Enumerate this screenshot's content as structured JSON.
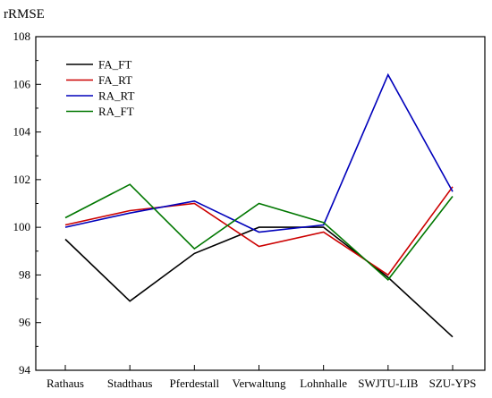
{
  "chart_data": {
    "type": "line",
    "title": "",
    "ylabel": "rRMSE",
    "xlabel": "",
    "categories": [
      "Rathaus",
      "Stadthaus",
      "Pferdestall",
      "Verwaltung",
      "Lohnhalle",
      "SWJTU-LIB",
      "SZU-YPS"
    ],
    "ylim": [
      94,
      108
    ],
    "yticks": [
      94,
      96,
      98,
      100,
      102,
      104,
      106,
      108
    ],
    "grid": false,
    "legend_position": "top-left",
    "series": [
      {
        "name": "FA_FT",
        "color": "#000000",
        "values": [
          99.5,
          96.9,
          98.9,
          100.0,
          100.0,
          97.9,
          95.4
        ]
      },
      {
        "name": "FA_RT",
        "color": "#cc0000",
        "values": [
          100.1,
          100.7,
          101.0,
          99.2,
          99.8,
          98.0,
          101.7
        ]
      },
      {
        "name": "RA_RT",
        "color": "#0000bb",
        "values": [
          100.0,
          100.6,
          101.1,
          99.8,
          100.1,
          106.4,
          101.5
        ]
      },
      {
        "name": "RA_FT",
        "color": "#007700",
        "values": [
          100.4,
          101.8,
          99.1,
          101.0,
          100.2,
          97.8,
          101.3
        ]
      }
    ]
  }
}
